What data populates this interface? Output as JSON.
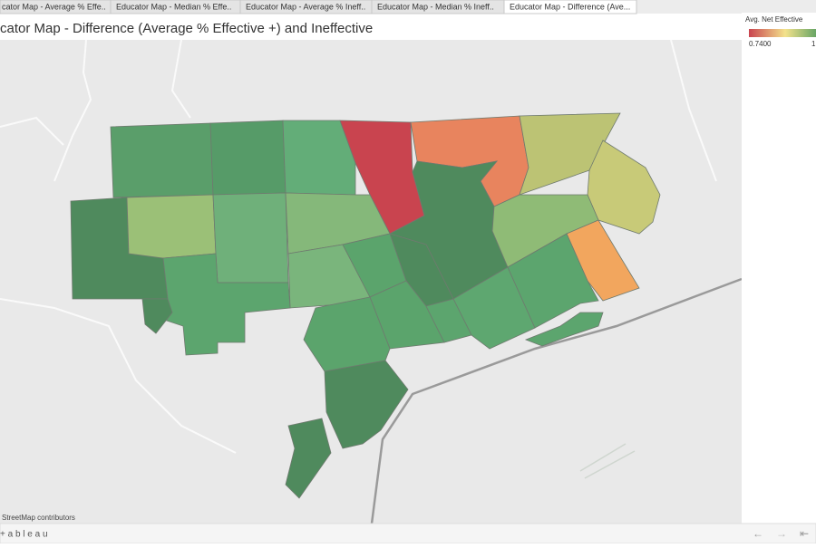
{
  "tabs": [
    "cator Map - Average % Effe..",
    "Educator Map - Median % Effe..",
    "Educator Map - Average % Ineff..",
    "Educator Map - Median % Ineff..",
    "Educator Map - Difference (Ave..."
  ],
  "title": "cator Map - Difference (Average % Effective +) and Ineffective",
  "legend": {
    "title": "Avg. Net Effective",
    "min_label": "0.7400",
    "max_label": "1"
  },
  "attribution": "StreetMap contributors",
  "footer": {
    "logo": "+ a b l e a u",
    "nav": [
      "←",
      "→",
      "⇤"
    ]
  }
}
